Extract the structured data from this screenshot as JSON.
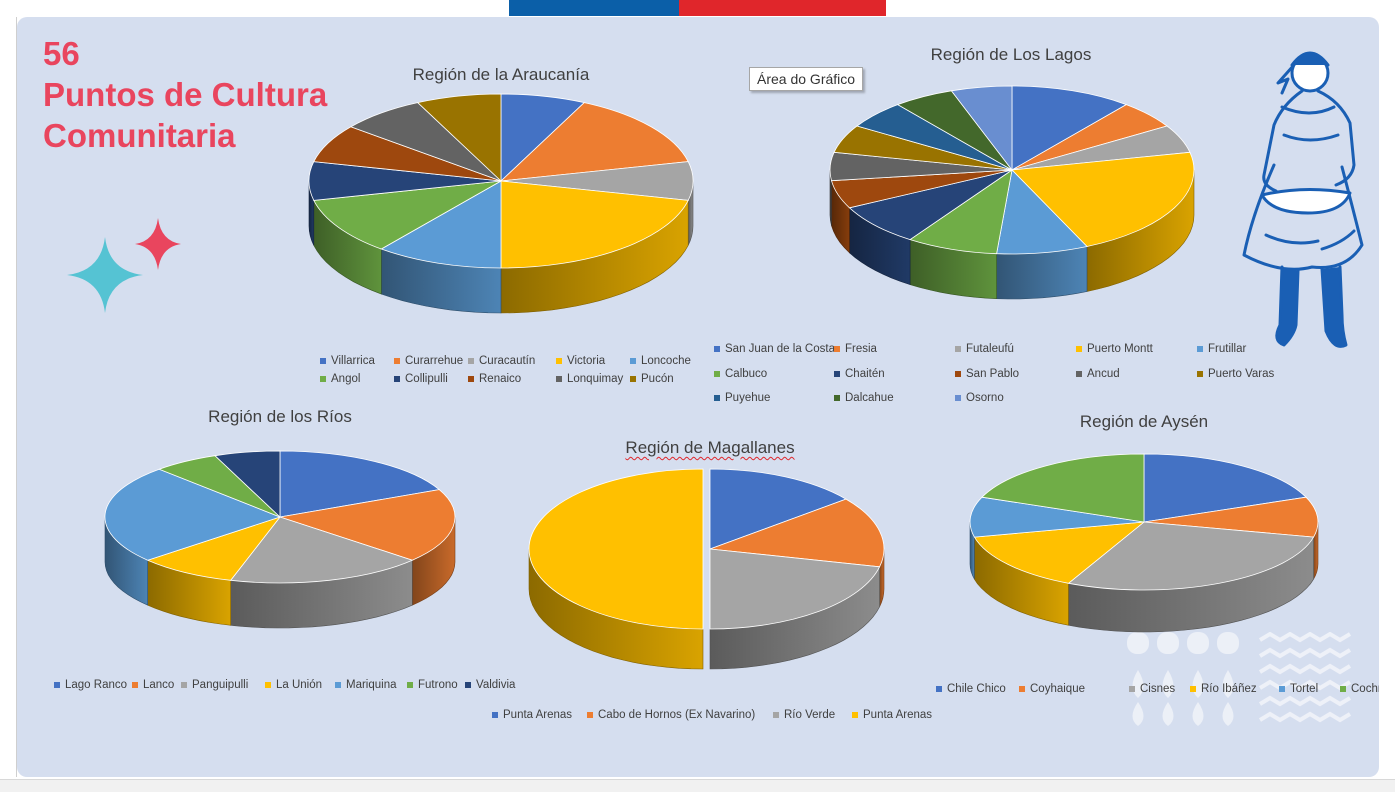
{
  "heading": {
    "line1": "56",
    "line2": "Puntos de Cultura",
    "line3": "Comunitaria"
  },
  "tooltip": "Área do Gráfico",
  "colors": {
    "palette": [
      "#4472c4",
      "#ed7d31",
      "#a5a5a5",
      "#ffc000",
      "#5b9bd5",
      "#70ad47",
      "#264478",
      "#9e480e",
      "#636363",
      "#997300",
      "#255e91",
      "#43682b",
      "#698ed0"
    ],
    "heading": "#e9455e",
    "background": "#d5deef"
  },
  "chart_data": [
    {
      "type": "pie",
      "title": "Región de la Araucanía",
      "categories": [
        "Villarrica",
        "Curarrehue",
        "Curacautín",
        "Victoria",
        "Loncoche",
        "Angol",
        "Collipulli",
        "Renaico",
        "Lonquimay",
        "Pucón"
      ],
      "values": [
        1,
        2,
        1,
        3,
        1.5,
        1.5,
        1,
        1,
        1,
        1
      ]
    },
    {
      "type": "pie",
      "title": "Región de Los Lagos",
      "categories": [
        "San Juan de la Costa",
        "Fresia",
        "Futaleufú",
        "Puerto Montt",
        "Frutillar",
        "Calbuco",
        "Chaitén",
        "San Pablo",
        "Ancud",
        "Puerto Varas",
        "Puyehue",
        "Dalcahue",
        "Osorno"
      ],
      "values": [
        2,
        1,
        1,
        4,
        1.5,
        1.5,
        1.5,
        1,
        1,
        1,
        1,
        1,
        1
      ]
    },
    {
      "type": "pie",
      "title": "Región de los Ríos",
      "categories": [
        "Lago Ranco",
        "Lanco",
        "Panguipulli",
        "La Unión",
        "Mariquina",
        "Futrono",
        "Valdivia"
      ],
      "values": [
        3,
        3,
        3,
        1.5,
        4,
        1,
        1
      ]
    },
    {
      "type": "pie",
      "title": "Región de Magallanes",
      "categories": [
        "Punta Arenas",
        "Cabo de Hornos (Ex Navarino)",
        "Río Verde",
        "Punta Arenas"
      ],
      "values": [
        1,
        1,
        1.5,
        3.5
      ]
    },
    {
      "type": "pie",
      "title": "Región de Aysén",
      "categories": [
        "Chile Chico",
        "Coyhaique",
        "Cisnes",
        "Río Ibáñez",
        "Tortel",
        "Cochrane"
      ],
      "values": [
        2,
        1,
        3,
        1.5,
        1,
        2
      ]
    }
  ]
}
